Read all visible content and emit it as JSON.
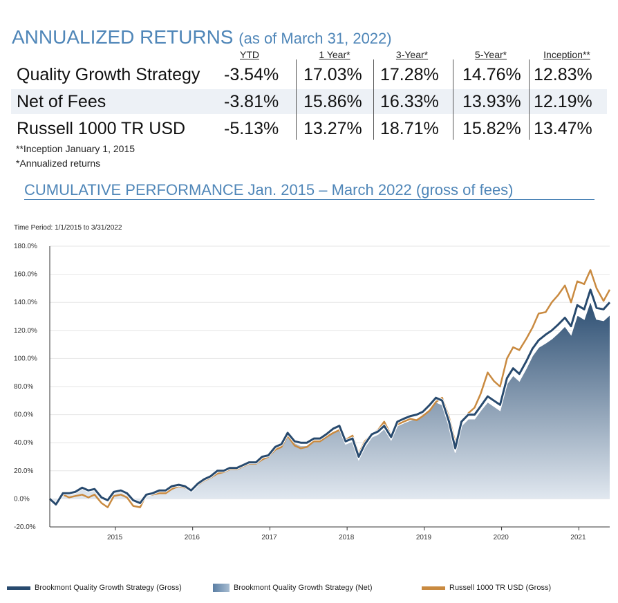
{
  "returns": {
    "title": "ANNUALIZED RETURNS",
    "subtitle": "(as of March 31, 2022)",
    "columns": [
      "YTD",
      "1 Year*",
      "3-Year*",
      "5-Year*",
      "Inception**"
    ],
    "rows": [
      {
        "label": "Quality Growth Strategy",
        "values": [
          "-3.54%",
          "17.03%",
          "17.28%",
          "14.76%",
          "12.83%"
        ]
      },
      {
        "label": "Net of Fees",
        "values": [
          "-3.81%",
          "15.86%",
          "16.33%",
          "13.93%",
          "12.19%"
        ]
      },
      {
        "label": "Russell 1000 TR USD",
        "values": [
          "-5.13%",
          "13.27%",
          "18.71%",
          "15.82%",
          "13.47%"
        ]
      }
    ],
    "notes": [
      "**Inception January 1, 2015",
      "*Annualized returns"
    ]
  },
  "cumulative": {
    "title": "CUMULATIVE PERFORMANCE Jan. 2015 – March 2022 (gross of fees)",
    "time_period": "Time Period: 1/1/2015 to 3/31/2022"
  },
  "chart_data": {
    "type": "area",
    "y_ticks": [
      "180.0%",
      "160.0%",
      "140.0%",
      "120.0%",
      "100.0%",
      "80.0%",
      "60.0%",
      "40.0%",
      "20.0%",
      "0.0%",
      "-20.0%"
    ],
    "ylim": [
      -20,
      180
    ],
    "x_ticks": [
      "2015",
      "2016",
      "2017",
      "2018",
      "2019",
      "2020",
      "2021"
    ],
    "x_tick_positions": [
      2015.85,
      2016.85,
      2017.85,
      2018.85,
      2019.85,
      2020.85,
      2021.85
    ],
    "xlim": [
      2015.0,
      2022.25
    ],
    "x": [
      2015.0,
      2015.08,
      2015.17,
      2015.25,
      2015.33,
      2015.42,
      2015.5,
      2015.58,
      2015.67,
      2015.75,
      2015.83,
      2015.92,
      2016.0,
      2016.08,
      2016.17,
      2016.25,
      2016.33,
      2016.42,
      2016.5,
      2016.58,
      2016.67,
      2016.75,
      2016.83,
      2016.92,
      2017.0,
      2017.08,
      2017.17,
      2017.25,
      2017.33,
      2017.42,
      2017.5,
      2017.58,
      2017.67,
      2017.75,
      2017.83,
      2017.92,
      2018.0,
      2018.08,
      2018.17,
      2018.25,
      2018.33,
      2018.42,
      2018.5,
      2018.58,
      2018.67,
      2018.75,
      2018.83,
      2018.92,
      2019.0,
      2019.08,
      2019.17,
      2019.25,
      2019.33,
      2019.42,
      2019.5,
      2019.58,
      2019.67,
      2019.75,
      2019.83,
      2019.92,
      2020.0,
      2020.08,
      2020.17,
      2020.25,
      2020.33,
      2020.42,
      2020.5,
      2020.58,
      2020.67,
      2020.75,
      2020.83,
      2020.92,
      2021.0,
      2021.08,
      2021.17,
      2021.25,
      2021.33,
      2021.42,
      2021.5,
      2021.58,
      2021.67,
      2021.75,
      2021.83,
      2021.92,
      2022.0,
      2022.08,
      2022.17,
      2022.25
    ],
    "series": [
      {
        "name": "Brookmont Quality Growth Strategy (Gross)",
        "color": "#284a6e",
        "values": [
          0,
          -4,
          4,
          4,
          5,
          8,
          6,
          7,
          1,
          -1,
          5,
          6,
          4,
          -1,
          -3,
          3,
          4,
          6,
          6,
          9,
          10,
          9,
          6,
          11,
          14,
          16,
          20,
          20,
          22,
          22,
          24,
          26,
          26,
          30,
          31,
          37,
          39,
          47,
          41,
          40,
          40,
          43,
          43,
          46,
          50,
          52,
          41,
          43,
          30,
          39,
          46,
          48,
          52,
          44,
          55,
          57,
          59,
          60,
          62,
          67,
          72,
          70,
          55,
          36,
          55,
          60,
          60,
          66,
          73,
          70,
          67,
          86,
          93,
          89,
          98,
          107,
          113,
          117,
          120,
          124,
          129,
          123,
          138,
          135,
          149,
          136,
          135,
          140
        ]
      },
      {
        "name": "Brookmont Quality Growth Strategy (Net)",
        "color": "#8aa5c0",
        "values": [
          0,
          -4,
          3,
          3,
          4,
          7,
          5,
          6,
          0,
          -2,
          4,
          5,
          3,
          -2,
          -4,
          2,
          3,
          5,
          5,
          8,
          9,
          8,
          5,
          10,
          13,
          15,
          19,
          19,
          21,
          21,
          23,
          25,
          25,
          29,
          30,
          36,
          38,
          45,
          40,
          38,
          38,
          41,
          41,
          44,
          48,
          50,
          39,
          41,
          28,
          37,
          44,
          46,
          50,
          42,
          52,
          54,
          56,
          57,
          59,
          64,
          69,
          67,
          52,
          33,
          52,
          57,
          57,
          63,
          69,
          66,
          63,
          82,
          88,
          84,
          93,
          102,
          108,
          111,
          114,
          118,
          123,
          117,
          131,
          128,
          141,
          128,
          127,
          131
        ]
      },
      {
        "name": "Russell 1000 TR USD (Gross)",
        "color": "#c98a40",
        "values": [
          0,
          -3,
          3,
          1,
          2,
          3,
          1,
          3,
          -3,
          -6,
          2,
          3,
          1,
          -5,
          -6,
          3,
          3,
          4,
          4,
          7,
          9,
          8,
          6,
          10,
          13,
          15,
          18,
          19,
          21,
          21,
          23,
          25,
          25,
          28,
          30,
          35,
          37,
          45,
          38,
          36,
          37,
          41,
          41,
          44,
          47,
          49,
          42,
          45,
          32,
          41,
          46,
          49,
          55,
          45,
          53,
          55,
          57,
          56,
          59,
          63,
          69,
          72,
          58,
          40,
          54,
          61,
          65,
          75,
          90,
          84,
          80,
          100,
          108,
          106,
          114,
          122,
          132,
          133,
          140,
          145,
          152,
          140,
          155,
          153,
          163,
          150,
          141,
          149
        ]
      }
    ]
  },
  "legend": [
    {
      "label": "Brookmont Quality Growth Strategy (Gross)",
      "color": "#284a6e"
    },
    {
      "label": "Brookmont Quality Growth Strategy (Net)",
      "color": "#8aa5c0"
    },
    {
      "label": "Russell 1000 TR USD (Gross)",
      "color": "#c98a40"
    }
  ]
}
